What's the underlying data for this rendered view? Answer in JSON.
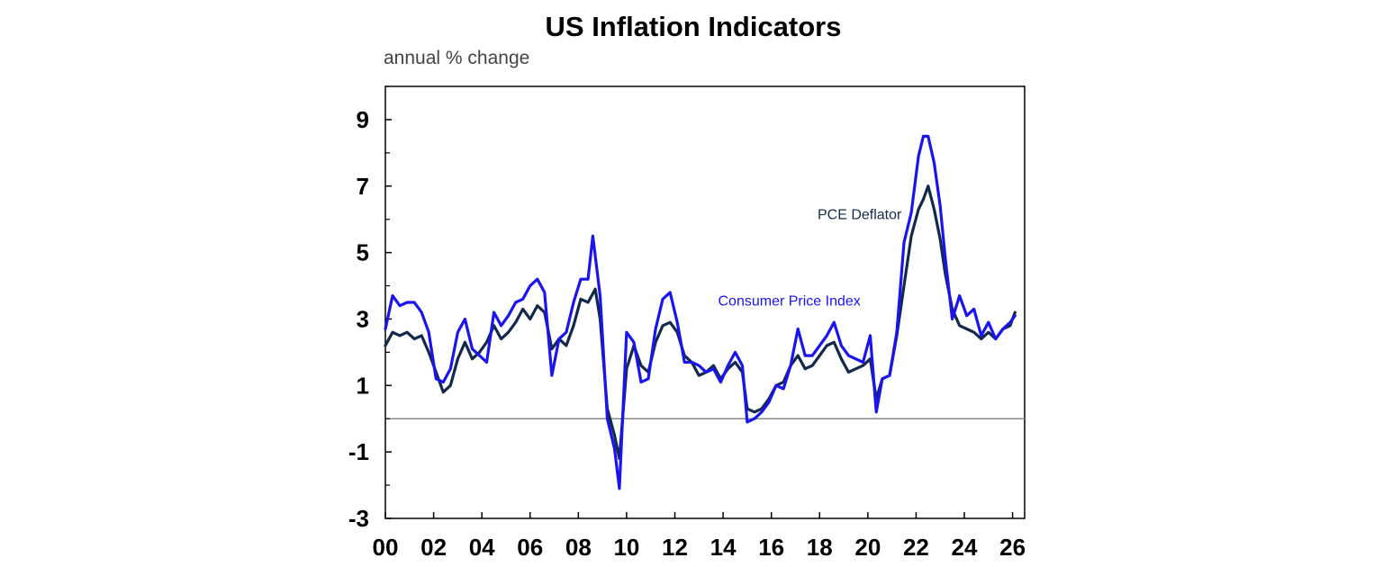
{
  "chart_data": {
    "type": "line",
    "title": "US Inflation Indicators",
    "subtitle": "annual % change",
    "xlabel": "",
    "ylabel": "",
    "xlim": [
      2000,
      2026.5
    ],
    "ylim": [
      -3,
      10
    ],
    "y_ticks": [
      "9",
      "7",
      "5",
      "3",
      "1",
      "-1",
      "-3"
    ],
    "y_tick_values": [
      9,
      7,
      5,
      3,
      1,
      -1,
      -3
    ],
    "x_ticks": [
      "00",
      "02",
      "04",
      "06",
      "08",
      "10",
      "12",
      "14",
      "16",
      "18",
      "20",
      "22",
      "24",
      "26"
    ],
    "x_tick_values": [
      2000,
      2002,
      2004,
      2006,
      2008,
      2010,
      2012,
      2014,
      2016,
      2018,
      2020,
      2022,
      2024,
      2026
    ],
    "zero_line": 0,
    "grid": false,
    "series": [
      {
        "name": "PCE Deflator",
        "color": "#13294b",
        "x": [
          2000.0,
          2000.3,
          2000.6,
          2000.9,
          2001.2,
          2001.5,
          2001.8,
          2002.1,
          2002.4,
          2002.7,
          2003.0,
          2003.3,
          2003.6,
          2003.9,
          2004.2,
          2004.5,
          2004.8,
          2005.1,
          2005.4,
          2005.7,
          2006.0,
          2006.3,
          2006.6,
          2006.9,
          2007.2,
          2007.5,
          2007.8,
          2008.1,
          2008.4,
          2008.7,
          2008.9,
          2009.2,
          2009.5,
          2009.7,
          2010.0,
          2010.3,
          2010.6,
          2010.9,
          2011.2,
          2011.5,
          2011.8,
          2012.1,
          2012.4,
          2012.7,
          2013.0,
          2013.3,
          2013.6,
          2013.9,
          2014.2,
          2014.5,
          2014.8,
          2015.0,
          2015.3,
          2015.6,
          2015.9,
          2016.2,
          2016.5,
          2016.8,
          2017.1,
          2017.4,
          2017.7,
          2018.0,
          2018.3,
          2018.6,
          2018.9,
          2019.2,
          2019.5,
          2019.8,
          2020.1,
          2020.35,
          2020.6,
          2020.9,
          2021.2,
          2021.5,
          2021.8,
          2022.1,
          2022.3,
          2022.5,
          2022.75,
          2023.0,
          2023.2,
          2023.5,
          2023.8,
          2024.1,
          2024.4,
          2024.7,
          2025.0,
          2025.3,
          2025.6,
          2025.9,
          2026.1
        ],
        "values": [
          2.2,
          2.6,
          2.5,
          2.6,
          2.4,
          2.5,
          2.0,
          1.4,
          0.8,
          1.0,
          1.8,
          2.3,
          1.8,
          2.0,
          2.3,
          2.8,
          2.4,
          2.6,
          2.9,
          3.3,
          3.0,
          3.4,
          3.2,
          2.1,
          2.4,
          2.2,
          2.8,
          3.6,
          3.5,
          3.9,
          3.0,
          0.3,
          -0.5,
          -1.2,
          1.5,
          2.2,
          1.6,
          1.4,
          2.3,
          2.8,
          2.9,
          2.6,
          1.9,
          1.7,
          1.3,
          1.4,
          1.6,
          1.2,
          1.5,
          1.7,
          1.4,
          0.3,
          0.2,
          0.3,
          0.6,
          1.0,
          1.1,
          1.6,
          1.9,
          1.5,
          1.6,
          1.9,
          2.2,
          2.3,
          1.8,
          1.4,
          1.5,
          1.6,
          1.8,
          0.6,
          1.2,
          1.3,
          2.5,
          4.0,
          5.5,
          6.3,
          6.6,
          7.0,
          6.3,
          5.4,
          4.4,
          3.3,
          2.8,
          2.7,
          2.6,
          2.4,
          2.6,
          2.4,
          2.7,
          2.8,
          3.2
        ]
      },
      {
        "name": "Consumer Price Index",
        "color": "#1a14f0",
        "x": [
          2000.0,
          2000.3,
          2000.6,
          2000.9,
          2001.2,
          2001.5,
          2001.8,
          2002.1,
          2002.4,
          2002.7,
          2003.0,
          2003.3,
          2003.6,
          2003.9,
          2004.2,
          2004.5,
          2004.8,
          2005.1,
          2005.4,
          2005.7,
          2006.0,
          2006.3,
          2006.6,
          2006.9,
          2007.2,
          2007.5,
          2007.8,
          2008.1,
          2008.4,
          2008.6,
          2008.9,
          2009.2,
          2009.5,
          2009.7,
          2010.0,
          2010.3,
          2010.6,
          2010.9,
          2011.2,
          2011.5,
          2011.8,
          2012.1,
          2012.4,
          2012.7,
          2013.0,
          2013.3,
          2013.6,
          2013.9,
          2014.2,
          2014.5,
          2014.8,
          2015.0,
          2015.3,
          2015.6,
          2015.9,
          2016.2,
          2016.5,
          2016.8,
          2017.1,
          2017.4,
          2017.7,
          2018.0,
          2018.3,
          2018.6,
          2018.9,
          2019.2,
          2019.5,
          2019.8,
          2020.1,
          2020.35,
          2020.6,
          2020.9,
          2021.2,
          2021.5,
          2021.8,
          2022.1,
          2022.3,
          2022.5,
          2022.75,
          2023.0,
          2023.2,
          2023.5,
          2023.8,
          2024.1,
          2024.4,
          2024.7,
          2025.0,
          2025.3,
          2025.6,
          2025.9,
          2026.1
        ],
        "values": [
          2.7,
          3.7,
          3.4,
          3.5,
          3.5,
          3.2,
          2.6,
          1.2,
          1.1,
          1.5,
          2.6,
          3.0,
          2.1,
          1.9,
          1.7,
          3.2,
          2.8,
          3.1,
          3.5,
          3.6,
          4.0,
          4.2,
          3.8,
          1.3,
          2.4,
          2.6,
          3.5,
          4.2,
          4.2,
          5.5,
          3.7,
          0.0,
          -0.9,
          -2.1,
          2.6,
          2.3,
          1.1,
          1.2,
          2.7,
          3.6,
          3.8,
          2.9,
          1.7,
          1.7,
          1.6,
          1.4,
          1.5,
          1.1,
          1.6,
          2.0,
          1.6,
          -0.1,
          0.0,
          0.2,
          0.5,
          1.0,
          0.9,
          1.6,
          2.7,
          1.9,
          1.9,
          2.2,
          2.5,
          2.9,
          2.2,
          1.9,
          1.8,
          1.7,
          2.5,
          0.2,
          1.2,
          1.3,
          2.6,
          5.3,
          6.2,
          7.9,
          8.5,
          8.5,
          7.7,
          6.4,
          4.9,
          3.0,
          3.7,
          3.1,
          3.3,
          2.5,
          2.9,
          2.4,
          2.7,
          2.9,
          3.1
        ]
      }
    ],
    "annotations": [
      {
        "text": "PCE Deflator",
        "series": 0,
        "x": 2021.4,
        "y": 6.0
      },
      {
        "text": "Consumer Price Index",
        "series": 1,
        "x": 2019.7,
        "y": 3.4
      }
    ]
  }
}
